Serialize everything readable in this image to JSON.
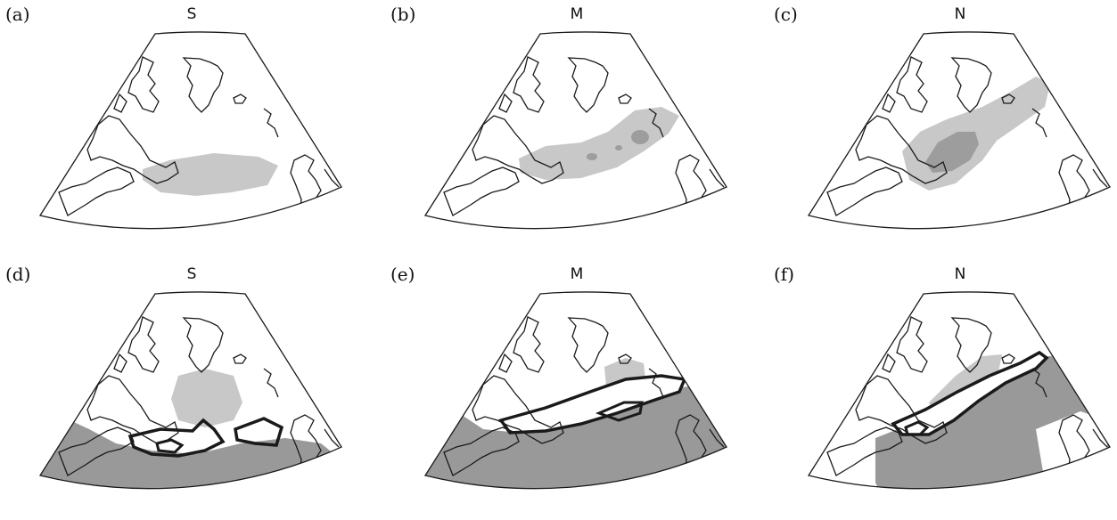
{
  "panels": [
    {
      "letter": "(a)",
      "title": "S"
    },
    {
      "letter": "(b)",
      "title": "M"
    },
    {
      "letter": "(c)",
      "title": "N"
    },
    {
      "letter": "(d)",
      "title": "S"
    },
    {
      "letter": "(e)",
      "title": "M"
    },
    {
      "letter": "(f)",
      "title": "N"
    }
  ],
  "colors": {
    "light_shade": "#c8c8c8",
    "mid_shade": "#9d9d9d",
    "dark_shade": "#999999",
    "coast": "#1a1a1a",
    "contour": "#1a1a1a"
  }
}
